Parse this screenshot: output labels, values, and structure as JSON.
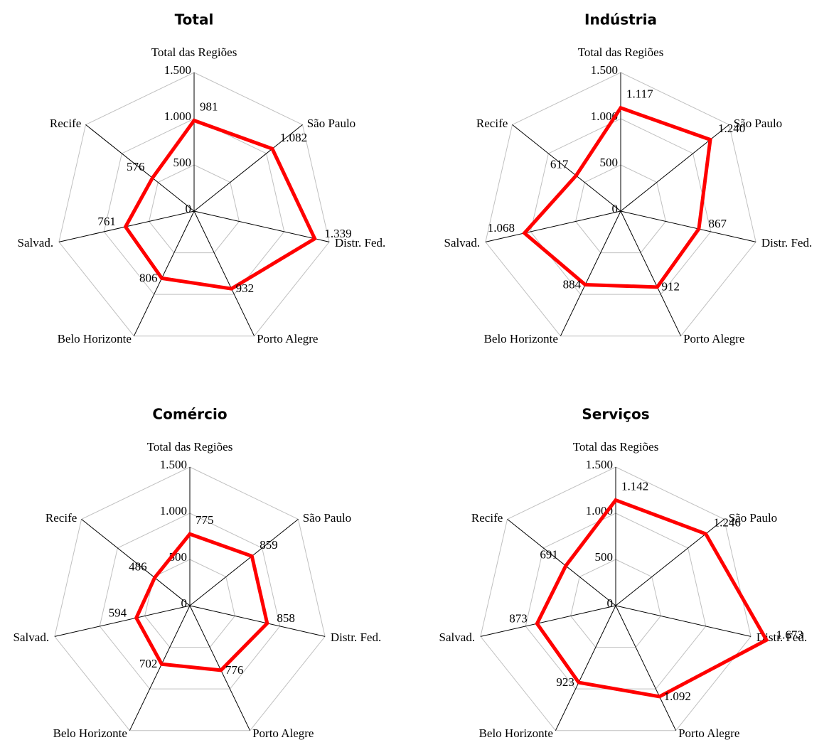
{
  "chart_data": [
    {
      "type": "radar",
      "title": "Total",
      "categories": [
        "Total das Regiões",
        "São Paulo",
        "Distr. Fed.",
        "Porto Alegre",
        "Belo Horizonte",
        "Salvad.",
        "Recife"
      ],
      "values": [
        981,
        1082,
        1339,
        932,
        806,
        761,
        576
      ],
      "value_labels": [
        "981",
        "1.082",
        "1.339",
        "932",
        "806",
        "761",
        "576"
      ],
      "color": "#ff0000",
      "ylim": [
        0,
        1500
      ],
      "yticks": [
        0,
        500,
        {
          "value": 1000,
          "label": "1.000"
        },
        {
          "value": 1500,
          "label": "1.500"
        }
      ]
    },
    {
      "type": "radar",
      "title": "Indústria",
      "categories": [
        "Total das Regiões",
        "São Paulo",
        "Distr. Fed.",
        "Porto Alegre",
        "Belo Horizonte",
        "Salvad.",
        "Recife"
      ],
      "values": [
        1117,
        1240,
        867,
        912,
        884,
        1068,
        617
      ],
      "value_labels": [
        "1.117",
        "1.240",
        "867",
        "912",
        "884",
        "1.068",
        "617"
      ],
      "color": "#ff0000",
      "ylim": [
        0,
        1500
      ],
      "yticks": [
        0,
        500,
        {
          "value": 1000,
          "label": "1.000"
        },
        {
          "value": 1500,
          "label": "1.500"
        }
      ]
    },
    {
      "type": "radar",
      "title": "Comércio",
      "categories": [
        "Total das Regiões",
        "São Paulo",
        "Distr. Fed.",
        "Porto Alegre",
        "Belo Horizonte",
        "Salvad.",
        "Recife"
      ],
      "values": [
        775,
        859,
        858,
        776,
        702,
        594,
        486
      ],
      "value_labels": [
        "775",
        "859",
        "858",
        "776",
        "702",
        "594",
        "486"
      ],
      "color": "#ff0000",
      "ylim": [
        0,
        1500
      ],
      "yticks": [
        0,
        500,
        {
          "value": 1000,
          "label": "1.000"
        },
        {
          "value": 1500,
          "label": "1.500"
        }
      ]
    },
    {
      "type": "radar",
      "title": "Serviços",
      "categories": [
        "Total das Regiões",
        "São Paulo",
        "Distr. Fed.",
        "Porto Alegre",
        "Belo Horizonte",
        "Salvad.",
        "Recife"
      ],
      "values": [
        1142,
        1246,
        1673,
        1092,
        923,
        873,
        691
      ],
      "value_labels": [
        "1.142",
        "1.246",
        "1.673",
        "1.092",
        "923",
        "873",
        "691"
      ],
      "color": "#ff0000",
      "ylim": [
        0,
        1500
      ],
      "yticks": [
        0,
        500,
        {
          "value": 1000,
          "label": "1.000"
        },
        {
          "value": 1500,
          "label": "1.500"
        }
      ]
    }
  ]
}
